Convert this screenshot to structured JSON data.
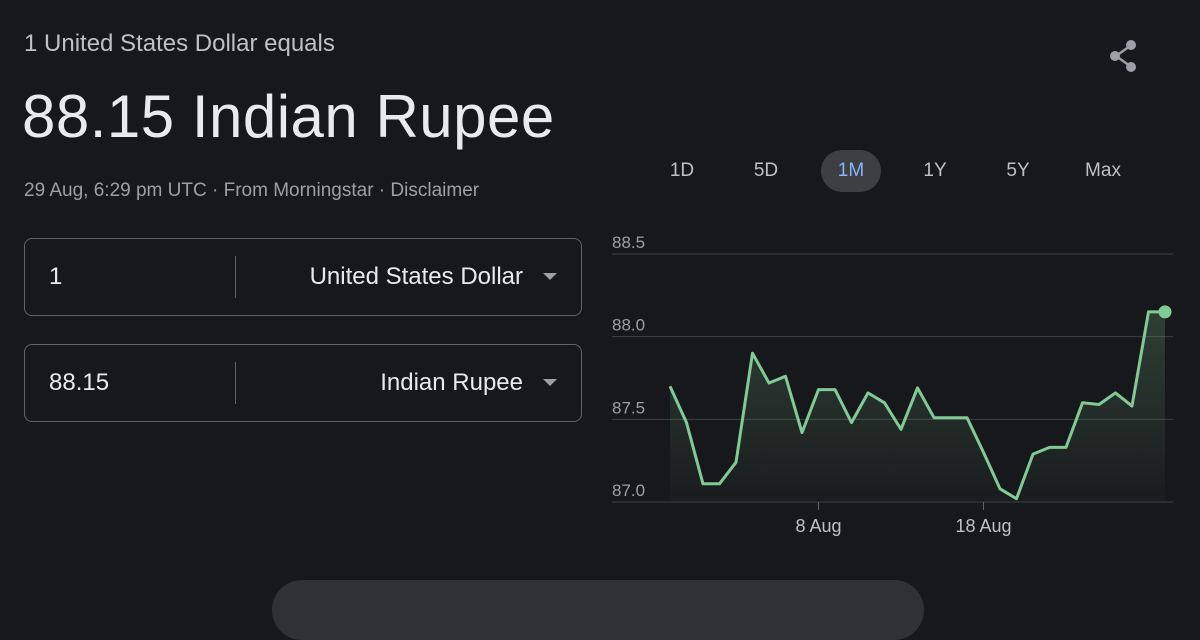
{
  "header": {
    "equals_label": "1 United States Dollar equals",
    "result": "88.15 Indian Rupee",
    "timestamp": "29 Aug, 6:29 pm UTC",
    "sep1": " · ",
    "source": "From Morningstar",
    "sep2": " · ",
    "disclaimer": "Disclaimer"
  },
  "converter": {
    "from": {
      "amount": "1",
      "currency": "United States Dollar"
    },
    "to": {
      "amount": "88.15",
      "currency": "Indian Rupee"
    }
  },
  "range_tabs": [
    {
      "label": "1D",
      "active": false
    },
    {
      "label": "5D",
      "active": false
    },
    {
      "label": "1M",
      "active": true
    },
    {
      "label": "1Y",
      "active": false
    },
    {
      "label": "5Y",
      "active": false
    },
    {
      "label": "Max",
      "active": false
    }
  ],
  "icons": {
    "share": "share-icon",
    "dropdown": "caret-down-icon"
  },
  "colors": {
    "line": "#81c995",
    "active_tab": "#8ab4f8",
    "grid": "#3c4043"
  },
  "chart_data": {
    "type": "area",
    "ylim": [
      87.0,
      88.5
    ],
    "yticks": [
      "88.5",
      "88.0",
      "87.5",
      "87.0"
    ],
    "xticks": [
      {
        "label": "8 Aug",
        "at": "2025-08-08"
      },
      {
        "label": "18 Aug",
        "at": "2025-08-18"
      }
    ],
    "x": [
      "2025-07-30",
      "2025-07-31",
      "2025-08-01",
      "2025-08-02",
      "2025-08-03",
      "2025-08-04",
      "2025-08-05",
      "2025-08-06",
      "2025-08-07",
      "2025-08-08",
      "2025-08-09",
      "2025-08-10",
      "2025-08-11",
      "2025-08-12",
      "2025-08-13",
      "2025-08-14",
      "2025-08-15",
      "2025-08-16",
      "2025-08-17",
      "2025-08-18",
      "2025-08-19",
      "2025-08-20",
      "2025-08-21",
      "2025-08-22",
      "2025-08-23",
      "2025-08-24",
      "2025-08-25",
      "2025-08-26",
      "2025-08-27",
      "2025-08-28",
      "2025-08-29"
    ],
    "values": [
      87.7,
      87.48,
      87.11,
      87.11,
      87.24,
      87.9,
      87.72,
      87.76,
      87.42,
      87.68,
      87.68,
      87.48,
      87.66,
      87.6,
      87.44,
      87.69,
      87.51,
      87.51,
      87.51,
      87.3,
      87.08,
      87.02,
      87.29,
      87.33,
      87.33,
      87.6,
      87.59,
      87.66,
      87.58,
      88.15,
      88.15
    ]
  }
}
